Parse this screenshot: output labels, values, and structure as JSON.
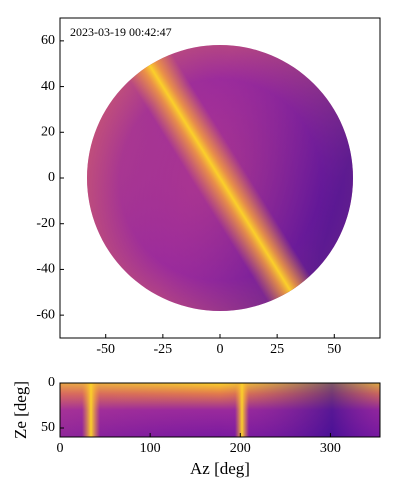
{
  "chart_data": [
    {
      "type": "image",
      "annotation": "2023-03-19 00:42:47",
      "xlim": [
        -70,
        70
      ],
      "xticks": [
        -50,
        -25,
        0,
        25,
        50
      ],
      "ylim": [
        -70,
        70
      ],
      "yticks": [
        -60,
        -40,
        -20,
        0,
        20,
        40,
        60
      ]
    },
    {
      "type": "image",
      "xlabel": "Az [deg]",
      "ylabel": "Ze [deg]",
      "xlim": [
        0,
        355
      ],
      "xticks": [
        0,
        100,
        200,
        300
      ],
      "ylim": [
        60,
        0
      ],
      "yticks": [
        0,
        50
      ]
    }
  ]
}
